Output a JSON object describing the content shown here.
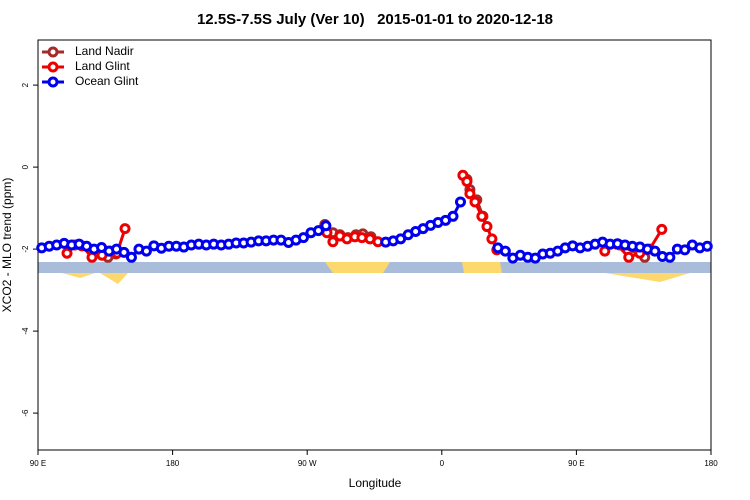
{
  "chart_data": {
    "type": "line",
    "title": "12.5S-7.5S July (Ver 10)   2015-01-01 to 2020-12-18",
    "x_label": "Longitude",
    "y_label": "XCO2 - MLO trend (ppm)",
    "xlim": [
      90,
      540
    ],
    "ylim": [
      -6.9,
      3.1
    ],
    "xticks": [
      {
        "value": 90,
        "label": "90 E"
      },
      180,
      {
        "value": 270,
        "label": "90 W"
      },
      {
        "value": 360,
        "label": "0"
      },
      {
        "value": 450,
        "label": "90 E"
      },
      {
        "value": 540,
        "label": "180"
      }
    ],
    "yticks": [
      2,
      0,
      -2,
      -4,
      -6
    ],
    "legend": "top-left",
    "series": [
      {
        "name": "Land Nadir",
        "color": "#a52a2a",
        "x": [
          136.8,
          142.1,
          null,
          281.8,
          287.2,
          291.9,
          297.2,
          302.6,
          307.2,
          312.6,
          null,
          376.8,
          378.8,
          383.4,
          387.5,
          null,
          479,
          495.7
        ],
        "values": [
          -2.2,
          -2.12,
          null,
          -1.4,
          -1.6,
          -1.65,
          -1.72,
          -1.65,
          -1.63,
          -1.7,
          null,
          -0.3,
          -0.55,
          -0.8,
          -1.2,
          null,
          -1.9,
          -2.2
        ]
      },
      {
        "name": "Land Glint",
        "color": "#ee0000",
        "x": [
          109.4,
          114.7,
          119.4,
          126.1,
          132.8,
          138.1,
          142.8,
          148.2,
          null,
          283.2,
          287.2,
          291.9,
          296.6,
          301.9,
          306.6,
          312,
          317.3,
          null,
          374.1,
          376.8,
          378.8,
          382.2,
          386.8,
          390.2,
          393.5,
          396.8,
          null,
          469,
          477,
          485,
          492.4,
          499,
          507.1
        ],
        "values": [
          -2.1,
          -1.9,
          -1.92,
          -2.2,
          -2.15,
          -2.05,
          -2.1,
          -1.5,
          null,
          -1.6,
          -1.82,
          -1.68,
          -1.75,
          -1.7,
          -1.72,
          -1.75,
          -1.82,
          null,
          -0.2,
          -0.35,
          -0.65,
          -0.85,
          -1.2,
          -1.45,
          -1.75,
          -2.02,
          null,
          -2.05,
          -1.88,
          -2.2,
          -2.1,
          -2.0,
          -1.52
        ]
      },
      {
        "name": "Ocean Glint",
        "color": "#0000ee",
        "x": [
          92.5,
          97.5,
          102.5,
          107.5,
          112.5,
          117.5,
          122.5,
          127.5,
          132.5,
          137.5,
          142.5,
          147.5,
          152.5,
          157.5,
          162.5,
          167.5,
          172.5,
          177.5,
          182.5,
          187.5,
          192.5,
          197.5,
          202.5,
          207.5,
          212.5,
          217.5,
          222.5,
          227.5,
          232.5,
          237.5,
          242.5,
          247.5,
          252.5,
          257.5,
          262.5,
          267.5,
          272.5,
          277.5,
          282.5,
          287.5,
          292.5,
          297.5,
          302.5,
          307.5,
          312.5,
          317.5,
          322.5,
          327.5,
          332.5,
          337.5,
          342.5,
          347.5,
          352.5,
          357.5,
          362.5,
          367.5,
          372.5,
          377.5,
          382.5,
          387.5,
          392.5,
          397.5,
          402.5,
          407.5,
          412.5,
          417.5,
          422.5,
          427.5,
          432.5,
          437.5,
          442.5,
          447.5,
          452.5,
          457.5,
          462.5,
          467.5,
          472.5,
          477.5,
          482.5,
          487.5,
          492.5,
          497.5,
          502.5,
          507.5,
          512.5,
          517.5,
          522.5,
          527.5,
          532.5,
          537.5
        ],
        "values": [
          -1.97,
          -1.93,
          -1.9,
          -1.86,
          -1.9,
          -1.88,
          -1.93,
          -2.0,
          -1.96,
          -2.05,
          -2.0,
          -2.08,
          -2.2,
          -2.0,
          -2.05,
          -1.92,
          -1.98,
          -1.93,
          -1.93,
          -1.95,
          -1.9,
          -1.88,
          -1.9,
          -1.88,
          -1.9,
          -1.88,
          -1.85,
          -1.85,
          -1.83,
          -1.8,
          -1.8,
          -1.78,
          -1.78,
          -1.84,
          -1.78,
          -1.72,
          -1.6,
          -1.55,
          -1.43,
          null,
          null,
          null,
          null,
          null,
          null,
          null,
          -1.83,
          -1.8,
          -1.75,
          -1.65,
          -1.57,
          -1.5,
          -1.42,
          -1.35,
          -1.3,
          -1.2,
          -0.85,
          null,
          null,
          null,
          null,
          -1.97,
          -2.05,
          -2.22,
          -2.15,
          -2.2,
          -2.22,
          -2.12,
          -2.1,
          -2.05,
          -1.97,
          -1.92,
          -1.97,
          -1.93,
          -1.88,
          -1.83,
          -1.88,
          -1.87,
          -1.9,
          -1.93,
          -1.95,
          -2.0,
          -2.05,
          -2.18,
          -2.2,
          -2.0,
          -2.02,
          -1.9,
          -1.97,
          -1.93
        ]
      }
    ]
  }
}
